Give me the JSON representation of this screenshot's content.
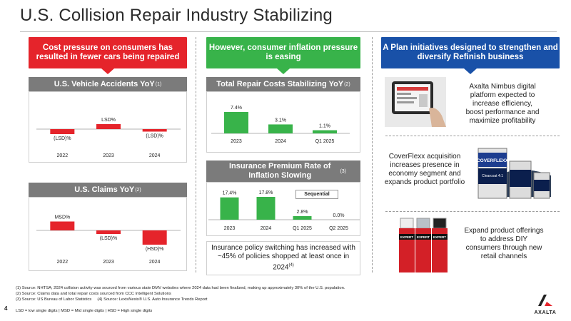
{
  "title": "U.S. Collision Repair Industry Stabilizing",
  "banners": {
    "left": "Cost pressure on consumers has resulted in fewer cars being repaired",
    "middle": "However, consumer inflation pressure is easing",
    "right": "A Plan initiatives designed to strengthen and diversify Refinish business"
  },
  "colors": {
    "red": "#e5242b",
    "green": "#38b34a",
    "blue": "#1951a8",
    "gray_header": "#7b7b7b"
  },
  "chart_data": [
    {
      "type": "bar",
      "title": "U.S. Vehicle Accidents YoY",
      "title_sup": "(1)",
      "categories": [
        "2022",
        "2023",
        "2024"
      ],
      "values": [
        -2,
        2,
        -1
      ],
      "data_labels": [
        "(LSD)%",
        "LSD%",
        "(LSD)%"
      ],
      "bar_color": "#e5242b"
    },
    {
      "type": "bar",
      "title": "U.S. Claims YoY",
      "title_sup": "(2)",
      "categories": [
        "2022",
        "2023",
        "2024"
      ],
      "values": [
        5,
        -2,
        -8
      ],
      "data_labels": [
        "MSD%",
        "(LSD)%",
        "(HSD)%"
      ],
      "bar_color": "#e5242b"
    },
    {
      "type": "bar",
      "title": "Total Repair Costs Stabilizing YoY",
      "title_sup": "(2)",
      "categories": [
        "2023",
        "2024",
        "Q1 2025"
      ],
      "values": [
        7.4,
        3.1,
        1.1
      ],
      "data_labels": [
        "7.4%",
        "3.1%",
        "1.1%"
      ],
      "bar_color": "#38b34a"
    },
    {
      "type": "bar",
      "title": "Insurance Premium Rate of Inflation Slowing",
      "title_sup": "(3)",
      "categories": [
        "2023",
        "2024",
        "Q1 2025",
        "Q2 2025"
      ],
      "values": [
        17.4,
        17.8,
        2.8,
        0.0
      ],
      "data_labels": [
        "17.4%",
        "17.8%",
        "2.8%",
        "0.0%"
      ],
      "legend": "Sequential",
      "bar_color": "#38b34a"
    }
  ],
  "middle_note": {
    "text": "Insurance policy switching has increased with ~45% of policies shopped at least once in 2024",
    "sup": "(4)"
  },
  "right_items": [
    {
      "text": "Axalta Nimbus digital platform expected to increase efficiency, boost performance and maximize profitability",
      "icon": "tablet-icon"
    },
    {
      "text": "CoverFlexx acquisition increases presence in economy segment and expands product portfolio",
      "icon": "paint-cans-icon"
    },
    {
      "text": "Expand product offerings to address DIY consumers through new retail channels",
      "icon": "spray-cans-icon"
    }
  ],
  "product_text": {
    "can_brand": "COVERFLEXX",
    "can_label": "Clearcoat 4:1",
    "spray_brand": "EXPERT"
  },
  "footnotes": [
    "(1) Source: NHTSA; 2024 collision activity was sourced from various state DMV websites where 2024 data had been finalized, making up approximately 30% of the U.S. population.",
    "(2) Source: Claims data and total repair costs sourced from CCC Intelligent Solutions",
    "(3) Source: US Bureau of Labor Statistics     (4) Source: LexisNexis® U.S. Auto Insurance Trends Report"
  ],
  "legend_note": "LSD = low single digits | MSD = Mid single digits | HSD = High single digits",
  "page_number": "4",
  "logo_text": "AXALTA"
}
